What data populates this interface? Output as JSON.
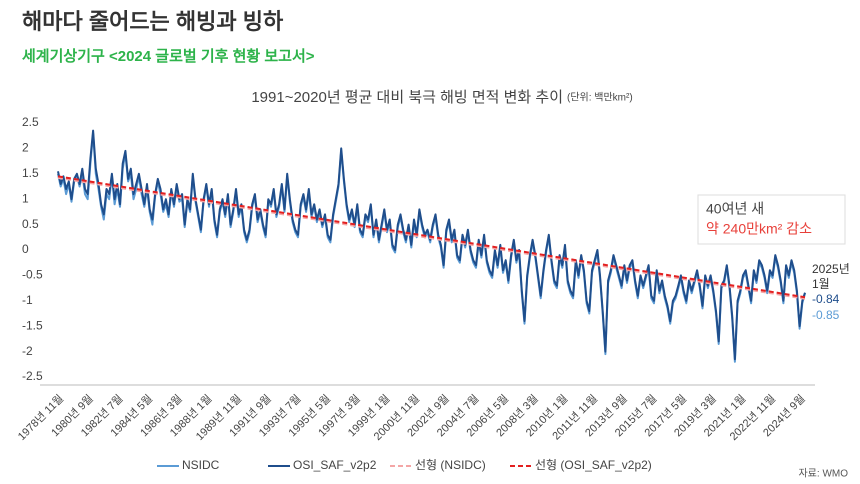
{
  "chart_data": {
    "type": "line",
    "title": "해마다 줄어드는 해빙과 빙하",
    "subtitle": "세계기상기구 <2024 글로벌 기후 현황 보고서>",
    "chart_title": "1991~2020년 평균 대비 북극 해빙 면적 변화 추이",
    "unit": "(단위: 백만km²)",
    "source": "자료: WMO",
    "annotations": {
      "callout": [
        "40여년 새",
        "약 240만km² 감소"
      ],
      "end_date": [
        "2025년",
        "1월"
      ]
    },
    "categories": [
      "1978년 11월",
      null,
      null,
      null,
      null,
      null,
      null,
      null,
      null,
      null,
      null,
      "1980년 9월",
      null,
      null,
      null,
      null,
      null,
      null,
      null,
      null,
      null,
      null,
      "1982년 7월",
      null,
      null,
      null,
      null,
      null,
      null,
      null,
      null,
      null,
      null,
      "1984년 5월",
      null,
      null,
      null,
      null,
      null,
      null,
      null,
      null,
      null,
      null,
      "1986년 3월",
      null,
      null,
      null,
      null,
      null,
      null,
      null,
      null,
      null,
      null,
      "1988년 1월",
      null,
      null,
      null,
      null,
      null,
      null,
      null,
      null,
      null,
      null,
      "1989년 11월",
      null,
      null,
      null,
      null,
      null,
      null,
      null,
      null,
      null,
      null,
      "1991년 9월",
      null,
      null,
      null,
      null,
      null,
      null,
      null,
      null,
      null,
      null,
      "1993년 7월",
      null,
      null,
      null,
      null,
      null,
      null,
      null,
      null,
      null,
      null,
      "1995년 5월",
      null,
      null,
      null,
      null,
      null,
      null,
      null,
      null,
      null,
      null,
      "1997년 3월",
      null,
      null,
      null,
      null,
      null,
      null,
      null,
      null,
      null,
      null,
      "1999년 1월",
      null,
      null,
      null,
      null,
      null,
      null,
      null,
      null,
      null,
      null,
      "2000년 11월",
      null,
      null,
      null,
      null,
      null,
      null,
      null,
      null,
      null,
      null,
      "2002년 9월",
      null,
      null,
      null,
      null,
      null,
      null,
      null,
      null,
      null,
      null,
      "2004년 7월",
      null,
      null,
      null,
      null,
      null,
      null,
      null,
      null,
      null,
      null,
      "2006년 5월",
      null,
      null,
      null,
      null,
      null,
      null,
      null,
      null,
      null,
      null,
      "2008년 3월",
      null,
      null,
      null,
      null,
      null,
      null,
      null,
      null,
      null,
      null,
      "2010년 1월",
      null,
      null,
      null,
      null,
      null,
      null,
      null,
      null,
      null,
      null,
      "2011년 11월",
      null,
      null,
      null,
      null,
      null,
      null,
      null,
      null,
      null,
      null,
      "2013년 9월",
      null,
      null,
      null,
      null,
      null,
      null,
      null,
      null,
      null,
      null,
      "2015년 7월",
      null,
      null,
      null,
      null,
      null,
      null,
      null,
      null,
      null,
      null,
      "2017년 5월",
      null,
      null,
      null,
      null,
      null,
      null,
      null,
      null,
      null,
      null,
      "2019년 3월",
      null,
      null,
      null,
      null,
      null,
      null,
      null,
      null,
      null,
      null,
      "2021년 1월",
      null,
      null,
      null,
      null,
      null,
      null,
      null,
      null,
      null,
      null,
      "2022년 11월",
      null,
      null,
      null,
      null,
      null,
      null,
      null,
      null,
      null,
      null,
      "2024년 9월",
      null,
      null
    ],
    "series": [
      {
        "name": "NSIDC",
        "color": "#5b9bd5",
        "values": [
          1.5,
          1.25,
          1.4,
          1.1,
          1.3,
          0.95,
          1.35,
          1.45,
          1.25,
          1.5,
          1.1,
          1.0,
          1.7,
          2.3,
          1.5,
          1.2,
          0.85,
          0.6,
          1.1,
          1.0,
          1.45,
          0.9,
          1.2,
          0.85,
          1.6,
          1.9,
          1.35,
          1.5,
          1.0,
          1.2,
          1.45,
          1.1,
          0.85,
          1.2,
          0.75,
          0.5,
          1.05,
          1.35,
          1.1,
          0.75,
          0.9,
          0.65,
          1.15,
          0.85,
          1.25,
          0.95,
          1.0,
          0.45,
          0.95,
          0.75,
          1.45,
          0.95,
          0.65,
          0.35,
          0.95,
          1.25,
          0.85,
          1.15,
          0.55,
          0.25,
          0.75,
          0.95,
          0.65,
          1.05,
          0.45,
          0.75,
          1.15,
          0.65,
          0.85,
          0.35,
          0.15,
          0.35,
          0.85,
          1.05,
          0.55,
          0.75,
          0.45,
          0.25,
          0.95,
          0.85,
          1.15,
          0.65,
          0.85,
          1.25,
          0.75,
          1.45,
          0.95,
          0.55,
          0.35,
          0.25,
          0.85,
          1.05,
          0.75,
          1.15,
          0.65,
          0.85,
          0.55,
          0.75,
          0.45,
          0.65,
          0.25,
          0.15,
          0.65,
          0.95,
          1.25,
          1.95,
          1.35,
          0.85,
          0.55,
          0.75,
          0.45,
          0.85,
          0.35,
          0.25,
          0.65,
          0.55,
          0.85,
          0.25,
          0.55,
          0.15,
          0.45,
          0.75,
          0.35,
          0.55,
          0.05,
          -0.05,
          0.45,
          0.65,
          0.35,
          0.15,
          0.45,
          0.05,
          0.55,
          0.25,
          0.75,
          0.45,
          0.25,
          0.35,
          0.15,
          0.45,
          0.65,
          0.25,
          0.05,
          -0.35,
          0.35,
          0.55,
          0.15,
          0.35,
          -0.15,
          -0.25,
          0.25,
          0.05,
          0.35,
          -0.05,
          -0.25,
          -0.35,
          0.15,
          -0.15,
          0.25,
          -0.25,
          -0.45,
          -0.55,
          -0.05,
          -0.35,
          0.05,
          -0.45,
          -0.25,
          -0.65,
          -0.15,
          0.15,
          -0.25,
          -0.05,
          -0.85,
          -1.45,
          -0.55,
          -0.15,
          0.15,
          -0.15,
          -0.55,
          -0.95,
          -0.45,
          -0.05,
          0.25,
          -0.25,
          -0.65,
          -0.75,
          -0.15,
          -0.35,
          0.05,
          -0.65,
          -0.85,
          -0.95,
          -0.25,
          -0.55,
          -0.15,
          -0.45,
          -1.05,
          -1.25,
          -0.45,
          -0.25,
          -0.05,
          -0.55,
          -1.25,
          -2.05,
          -0.65,
          -0.45,
          -0.15,
          -0.35,
          -0.55,
          -0.75,
          -0.35,
          -0.65,
          -0.35,
          -0.25,
          -0.65,
          -0.95,
          -0.55,
          -0.75,
          -0.55,
          -0.35,
          -0.95,
          -1.05,
          -0.45,
          -0.85,
          -0.65,
          -0.95,
          -1.15,
          -1.45,
          -1.05,
          -0.95,
          -0.75,
          -0.55,
          -0.85,
          -1.05,
          -0.65,
          -0.85,
          -0.65,
          -0.45,
          -0.75,
          -1.15,
          -0.55,
          -0.75,
          -0.55,
          -0.85,
          -1.25,
          -1.85,
          -0.75,
          -0.65,
          -0.35,
          -0.75,
          -1.35,
          -2.2,
          -1.05,
          -0.85,
          -0.55,
          -0.45,
          -0.75,
          -1.05,
          -0.45,
          -0.65,
          -0.25,
          -0.35,
          -0.55,
          -0.85,
          -0.45,
          -0.55,
          -0.15,
          -0.35,
          -0.65,
          -1.05,
          -0.35,
          -0.55,
          -0.25,
          -0.45,
          -0.85,
          -1.55,
          -1.05,
          -0.85
        ]
      },
      {
        "name": "OSI_SAF_v2p2",
        "color": "#1f4e8c",
        "values": [
          1.55,
          1.3,
          1.45,
          1.2,
          1.35,
          1.0,
          1.4,
          1.5,
          1.3,
          1.6,
          1.2,
          1.1,
          1.8,
          2.35,
          1.6,
          1.3,
          0.9,
          0.7,
          1.2,
          1.1,
          1.5,
          1.0,
          1.3,
          0.9,
          1.7,
          1.95,
          1.4,
          1.6,
          1.1,
          1.3,
          1.5,
          1.2,
          0.9,
          1.3,
          0.8,
          0.6,
          1.1,
          1.4,
          1.2,
          0.8,
          1.0,
          0.7,
          1.2,
          0.9,
          1.3,
          1.0,
          1.1,
          0.5,
          1.0,
          0.8,
          1.5,
          1.0,
          0.7,
          0.4,
          1.0,
          1.3,
          0.9,
          1.2,
          0.6,
          0.3,
          0.8,
          1.0,
          0.7,
          1.1,
          0.5,
          0.8,
          1.2,
          0.7,
          0.9,
          0.4,
          0.2,
          0.4,
          0.9,
          1.1,
          0.6,
          0.8,
          0.5,
          0.3,
          1.0,
          0.9,
          1.2,
          0.7,
          0.9,
          1.3,
          0.8,
          1.5,
          1.0,
          0.6,
          0.4,
          0.3,
          0.9,
          1.1,
          0.8,
          1.2,
          0.7,
          0.9,
          0.6,
          0.8,
          0.5,
          0.7,
          0.3,
          0.2,
          0.7,
          1.0,
          1.3,
          2.0,
          1.4,
          0.9,
          0.6,
          0.8,
          0.5,
          0.9,
          0.4,
          0.3,
          0.7,
          0.6,
          0.9,
          0.3,
          0.6,
          0.2,
          0.5,
          0.8,
          0.4,
          0.6,
          0.1,
          0.0,
          0.5,
          0.7,
          0.4,
          0.2,
          0.5,
          0.1,
          0.6,
          0.3,
          0.8,
          0.5,
          0.3,
          0.4,
          0.2,
          0.5,
          0.7,
          0.3,
          0.1,
          -0.3,
          0.4,
          0.6,
          0.2,
          0.4,
          -0.1,
          -0.2,
          0.3,
          0.1,
          0.4,
          0.0,
          -0.2,
          -0.3,
          0.2,
          -0.1,
          0.3,
          -0.2,
          -0.4,
          -0.5,
          0.0,
          -0.3,
          0.1,
          -0.4,
          -0.2,
          -0.6,
          -0.1,
          0.2,
          -0.2,
          0.0,
          -0.8,
          -1.4,
          -0.5,
          -0.1,
          0.2,
          -0.1,
          -0.5,
          -0.9,
          -0.4,
          0.0,
          0.3,
          -0.2,
          -0.6,
          -0.7,
          -0.1,
          -0.3,
          0.1,
          -0.6,
          -0.8,
          -0.9,
          -0.2,
          -0.5,
          -0.1,
          -0.4,
          -1.0,
          -1.2,
          -0.4,
          -0.2,
          0.0,
          -0.5,
          -1.2,
          -2.0,
          -0.6,
          -0.4,
          -0.1,
          -0.3,
          -0.5,
          -0.7,
          -0.3,
          -0.6,
          -0.3,
          -0.2,
          -0.6,
          -0.9,
          -0.5,
          -0.7,
          -0.5,
          -0.3,
          -0.9,
          -1.0,
          -0.4,
          -0.8,
          -0.6,
          -0.9,
          -1.1,
          -1.4,
          -1.0,
          -0.9,
          -0.7,
          -0.5,
          -0.8,
          -1.0,
          -0.6,
          -0.8,
          -0.6,
          -0.4,
          -0.7,
          -1.1,
          -0.5,
          -0.7,
          -0.5,
          -0.8,
          -1.2,
          -1.8,
          -0.7,
          -0.6,
          -0.3,
          -0.7,
          -1.3,
          -2.15,
          -1.0,
          -0.8,
          -0.5,
          -0.4,
          -0.7,
          -1.0,
          -0.4,
          -0.6,
          -0.2,
          -0.3,
          -0.5,
          -0.8,
          -0.4,
          -0.5,
          -0.1,
          -0.3,
          -0.6,
          -1.0,
          -0.3,
          -0.5,
          -0.2,
          -0.4,
          -0.8,
          -1.5,
          -1.0,
          -0.84
        ]
      }
    ],
    "trendlines": [
      {
        "name": "선형 (NSIDC)",
        "color": "#f4a6a6",
        "values": [
          1.42,
          -0.96
        ]
      },
      {
        "name": "선형 (OSI_SAF_v2p2)",
        "color": "#e32020",
        "values": [
          1.45,
          -0.93
        ]
      }
    ],
    "ylim": [
      -2.5,
      2.5
    ],
    "yticks": [
      2.5,
      2,
      1.5,
      1,
      0.5,
      0,
      -0.5,
      -1,
      -1.5,
      -2,
      -2.5
    ],
    "grid": false
  }
}
